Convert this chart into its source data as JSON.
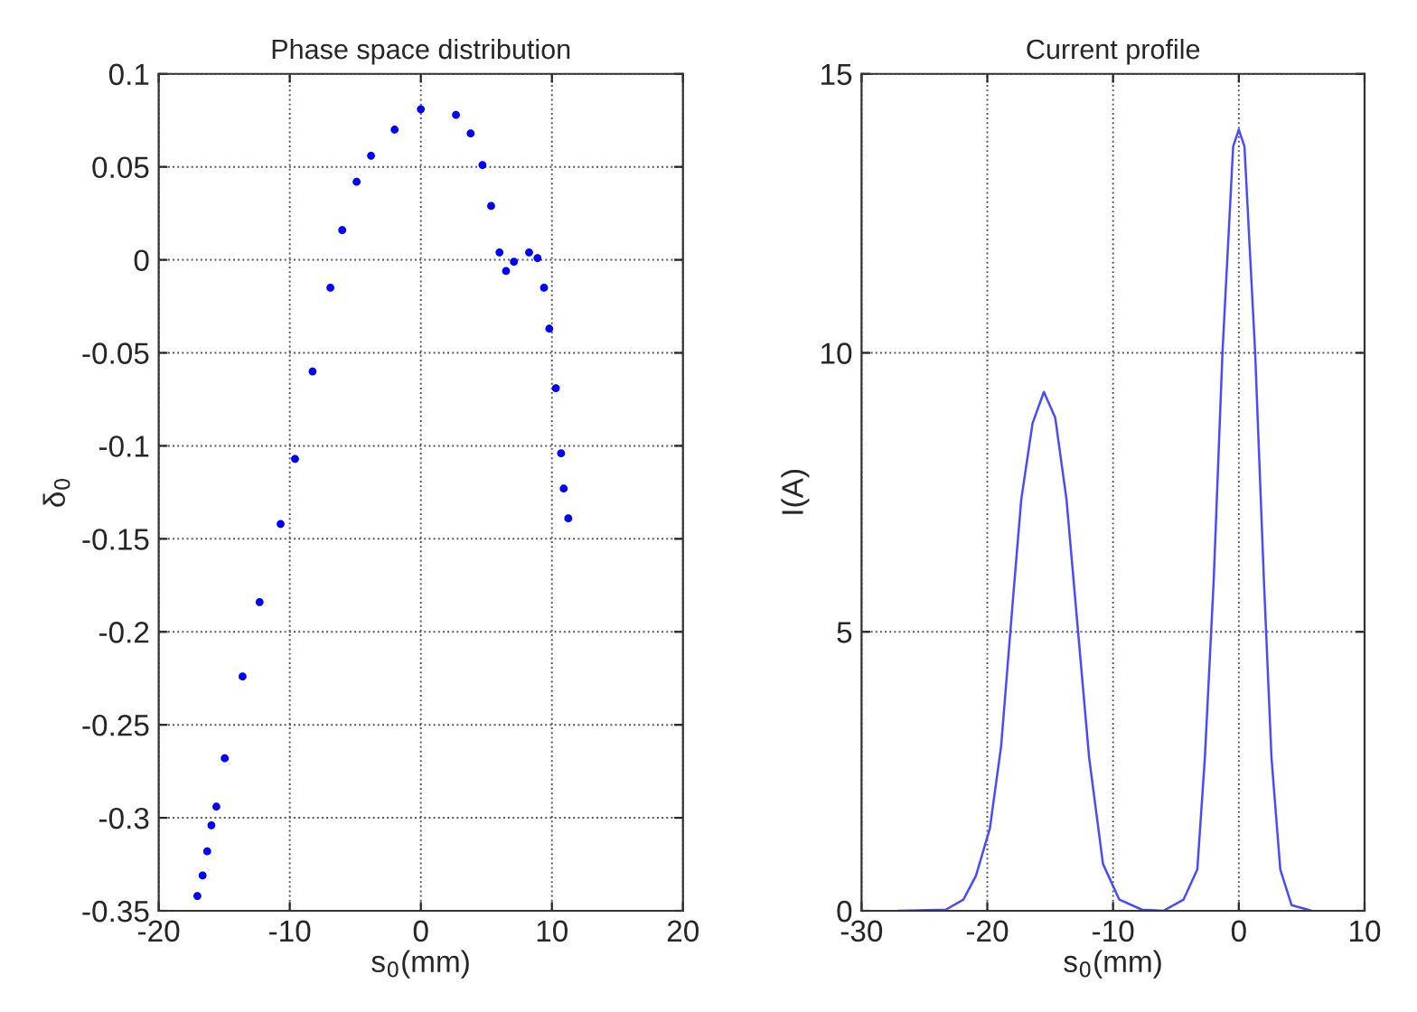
{
  "chart_data": [
    {
      "type": "scatter",
      "title": "Phase space distribution",
      "xlabel": "s$_{0}$(mm)",
      "ylabel": "δ$_{0}$",
      "xlim": [
        -20,
        20
      ],
      "xticks": [
        -20,
        -10,
        0,
        10,
        20
      ],
      "ylim": [
        -0.35,
        0.1
      ],
      "yticks": [
        -0.35,
        -0.3,
        -0.25,
        -0.2,
        -0.15,
        -0.1,
        -0.05,
        0,
        0.05,
        0.1
      ],
      "grid": true,
      "marker": "circle",
      "series": [
        {
          "color": "#0000ff",
          "x": [
            -17.05,
            -16.65,
            -16.3,
            -15.98,
            -15.6,
            -14.96,
            -13.6,
            -12.3,
            -10.7,
            -9.6,
            -8.26,
            -6.9,
            -6.0,
            -4.9,
            -3.8,
            -2.0,
            0,
            2.68,
            3.8,
            4.7,
            5.36,
            6.0,
            6.5,
            7.1,
            8.26,
            8.9,
            9.4,
            9.8,
            10.3,
            10.7,
            10.9,
            11.25
          ],
          "values": [
            -0.342,
            -0.331,
            -0.318,
            -0.304,
            -0.294,
            -0.268,
            -0.224,
            -0.184,
            -0.142,
            -0.107,
            -0.06,
            -0.015,
            0.016,
            0.042,
            0.056,
            0.07,
            0.081,
            0.078,
            0.068,
            0.051,
            0.029,
            0.004,
            -0.006,
            -0.001,
            0.004,
            0.001,
            -0.015,
            -0.037,
            -0.069,
            -0.104,
            -0.123,
            -0.139
          ]
        }
      ]
    },
    {
      "type": "line",
      "title": "Current profile",
      "xlabel": "s$_{0}$(mm)",
      "ylabel": "I(A)",
      "xlim": [
        -30,
        10
      ],
      "xticks": [
        -30,
        -20,
        -10,
        0,
        10
      ],
      "ylim": [
        0,
        15
      ],
      "yticks": [
        0,
        5,
        10,
        15
      ],
      "grid": true,
      "line_style": "solid",
      "series": [
        {
          "color": "#4a4aff",
          "x": [
            -27.1,
            -23.3,
            -21.9,
            -20.9,
            -19.8,
            -18.9,
            -18.0,
            -17.3,
            -16.4,
            -15.5,
            -14.6,
            -13.7,
            -12.8,
            -11.9,
            -10.8,
            -9.5,
            -7.7,
            -6.0,
            -4.4,
            -3.3,
            -2.7,
            -2.0,
            -1.3,
            -0.45,
            0,
            0.45,
            1.3,
            2.0,
            2.6,
            3.3,
            4.2,
            5.8
          ],
          "values": [
            0,
            0.02,
            0.2,
            0.63,
            1.47,
            2.95,
            5.47,
            7.37,
            8.74,
            9.3,
            8.84,
            7.37,
            5.05,
            2.74,
            0.84,
            0.2,
            0.02,
            0,
            0.2,
            0.74,
            2.74,
            5.9,
            10.0,
            13.7,
            14.0,
            13.7,
            10.0,
            5.9,
            2.74,
            0.74,
            0.1,
            0
          ]
        }
      ]
    }
  ]
}
